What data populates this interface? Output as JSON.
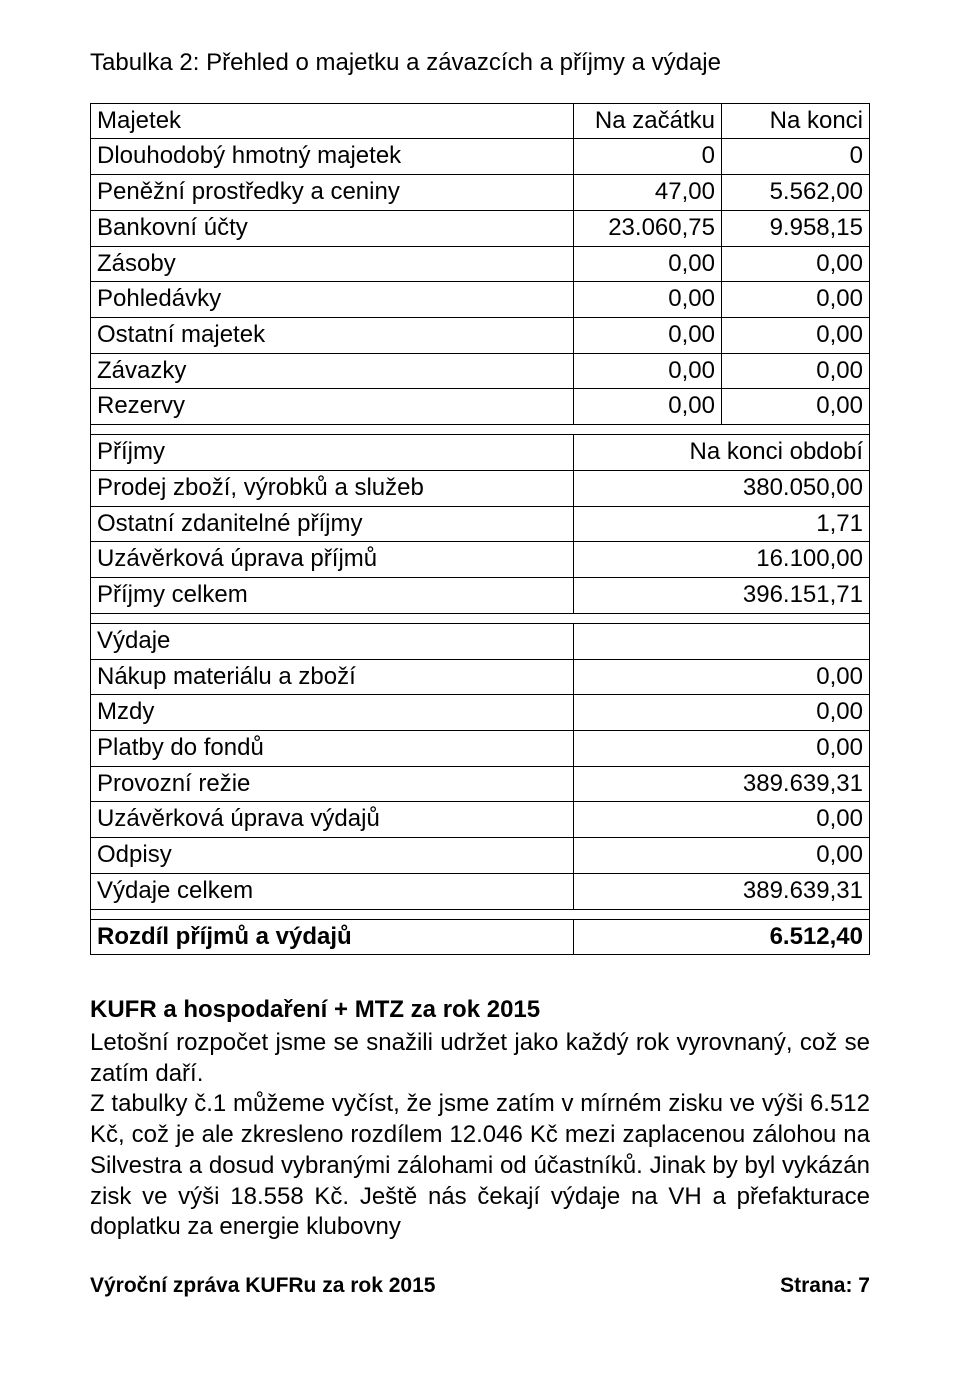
{
  "title": "Tabulka 2: Přehled o majetku a závazcích a příjmy a výdaje",
  "t1": {
    "h1": "Majetek",
    "h2": "Na začátku",
    "h3": "Na konci",
    "rows": [
      {
        "a": "Dlouhodobý hmotný majetek",
        "b": "0",
        "c": "0"
      },
      {
        "a": "Peněžní prostředky a ceniny",
        "b": "47,00",
        "c": "5.562,00"
      },
      {
        "a": "Bankovní účty",
        "b": "23.060,75",
        "c": "9.958,15"
      },
      {
        "a": "Zásoby",
        "b": "0,00",
        "c": "0,00"
      },
      {
        "a": "Pohledávky",
        "b": "0,00",
        "c": "0,00"
      },
      {
        "a": "Ostatní majetek",
        "b": "0,00",
        "c": "0,00"
      },
      {
        "a": "Závazky",
        "b": "0,00",
        "c": "0,00"
      },
      {
        "a": "Rezervy",
        "b": "0,00",
        "c": "0,00"
      }
    ]
  },
  "t2": {
    "rows": [
      {
        "a": "Příjmy",
        "b": "Na konci období",
        "hdr": true
      },
      {
        "a": "Prodej zboží, výrobků a služeb",
        "b": "380.050,00"
      },
      {
        "a": "Ostatní zdanitelné příjmy",
        "b": "1,71"
      },
      {
        "a": "Uzávěrková úprava příjmů",
        "b": "16.100,00"
      },
      {
        "a": "Příjmy celkem",
        "b": "396.151,71"
      }
    ]
  },
  "t3": {
    "rows": [
      {
        "a": "Výdaje",
        "b": "",
        "hdr": true
      },
      {
        "a": "Nákup materiálu a zboží",
        "b": "0,00"
      },
      {
        "a": "Mzdy",
        "b": "0,00"
      },
      {
        "a": "Platby do fondů",
        "b": "0,00"
      },
      {
        "a": "Provozní režie",
        "b": "389.639,31"
      },
      {
        "a": "Uzávěrková úprava výdajů",
        "b": "0,00"
      },
      {
        "a": "Odpisy",
        "b": "0,00"
      },
      {
        "a": "Výdaje celkem",
        "b": "389.639,31"
      }
    ]
  },
  "t4": {
    "a": "Rozdíl příjmů a výdajů",
    "b": "6.512,40"
  },
  "section_title": "KUFR a hospodaření + MTZ za rok 2015",
  "para": "Letošní rozpočet jsme se snažili udržet jako každý rok vyrovnaný, což se zatím daří.\nZ tabulky č.1 můžeme vyčíst, že jsme zatím v mírném zisku ve výši 6.512 Kč, což je ale zkresleno rozdílem 12.046 Kč mezi zaplacenou zálohou na Silvestra a dosud vybranými zálohami od účastníků. Jinak by byl vykázán zisk ve výši 18.558 Kč. Ještě nás čekají výdaje na VH a přefakturace doplatku za energie klubovny",
  "footer_left": "Výroční zpráva KUFRu za rok 2015",
  "footer_right": "Strana: 7"
}
